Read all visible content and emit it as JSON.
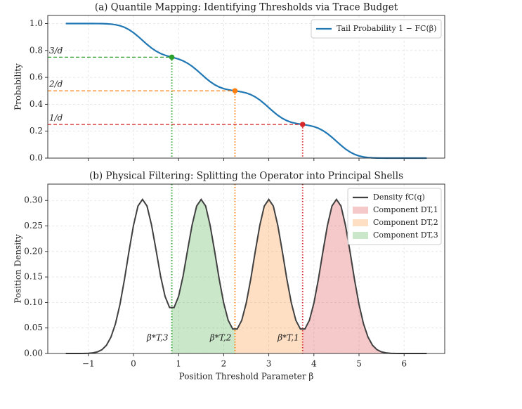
{
  "chart_data": [
    {
      "type": "line",
      "title": "(a) Quantile Mapping: Identifying Thresholds via Trace Budget",
      "ylabel": "Probability",
      "xlim": [
        -1.9,
        6.9
      ],
      "ylim": [
        0,
        1.06
      ],
      "yticks": [
        {
          "value": 0,
          "label": "0.0"
        },
        0.2,
        0.4,
        0.6,
        0.8,
        {
          "value": 1,
          "label": "1.0"
        }
      ],
      "grid": true,
      "legend": "upper right",
      "x": [
        -1.5,
        -1.4,
        -1.3,
        -1.2,
        -1.1,
        -1.0,
        -0.9,
        -0.8,
        -0.7,
        -0.6,
        -0.5,
        -0.4,
        -0.3,
        -0.2,
        -0.1,
        0,
        0.1,
        0.2,
        0.3,
        0.4,
        0.5,
        0.6,
        0.7,
        0.8,
        0.9,
        1.0,
        1.1,
        1.2,
        1.3,
        1.4,
        1.5,
        1.6,
        1.7,
        1.8,
        1.9,
        2.0,
        2.1,
        2.2,
        2.3,
        2.4,
        2.5,
        2.6,
        2.7,
        2.8,
        2.9,
        3.0,
        3.1,
        3.2,
        3.3,
        3.4,
        3.5,
        3.6,
        3.7,
        3.8,
        3.9,
        4.0,
        4.1,
        4.2,
        4.3,
        4.4,
        4.5,
        4.6,
        4.7,
        4.8,
        4.9,
        5.0,
        5.1,
        5.2,
        5.3,
        5.4,
        5.5,
        5.6,
        5.7,
        5.8,
        5.9,
        6.0,
        6.1,
        6.2,
        6.3,
        6.4,
        6.5
      ],
      "series": [
        {
          "name": "Tail Probability 1 − FC(β)",
          "color": "#1f77b4",
          "values": [
            1,
            1,
            1,
            1,
            1,
            1,
            0.9999,
            0.9997,
            0.9992,
            0.998,
            0.9958,
            0.9913,
            0.9838,
            0.9718,
            0.9545,
            0.932,
            0.9048,
            0.875,
            0.8452,
            0.8179,
            0.7952,
            0.7775,
            0.7643,
            0.7545,
            0.7455,
            0.7358,
            0.7226,
            0.7048,
            0.6821,
            0.6548,
            0.625,
            0.5953,
            0.568,
            0.5455,
            0.5282,
            0.516,
            0.508,
            0.5023,
            0.4978,
            0.492,
            0.484,
            0.4719,
            0.4545,
            0.432,
            0.4048,
            0.375,
            0.3453,
            0.318,
            0.2955,
            0.2782,
            0.266,
            0.258,
            0.2523,
            0.2478,
            0.242,
            0.234,
            0.2219,
            0.2045,
            0.182,
            0.1548,
            0.125,
            0.0953,
            0.068,
            0.0455,
            0.0283,
            0.0163,
            0.0088,
            0.0043,
            0.002,
            0.0008,
            0.0003,
            0.0001,
            0,
            0,
            0,
            0,
            0,
            0,
            0,
            0,
            0
          ]
        }
      ],
      "thresholds": [
        {
          "x": 0.85,
          "y": 0.75,
          "label": "3/d",
          "color": "#2ca02c"
        },
        {
          "x": 2.25,
          "y": 0.5,
          "label": "2/d",
          "color": "#ff7f0e"
        },
        {
          "x": 3.75,
          "y": 0.25,
          "label": "1/d",
          "color": "#d62728"
        }
      ]
    },
    {
      "type": "density",
      "title": "(b) Physical Filtering: Splitting the Operator into Principal Shells",
      "ylabel": "Position Density",
      "xlabel": "Position Threshold Parameter β",
      "xlim": [
        -1.9,
        6.9
      ],
      "ylim": [
        0,
        0.332
      ],
      "xticks": [
        {
          "value": -1,
          "label": "−1"
        },
        0,
        1,
        2,
        3,
        4,
        5,
        6
      ],
      "yticks": [
        {
          "value": 0,
          "label": "0.00"
        },
        0.05,
        {
          "value": 0.1,
          "label": "0.10"
        },
        0.15,
        {
          "value": 0.2,
          "label": "0.20"
        },
        0.25,
        {
          "value": 0.3,
          "label": "0.30"
        }
      ],
      "grid": true,
      "legend": "upper right",
      "x": [
        -1.5,
        -1.4,
        -1.3,
        -1.2,
        -1.1,
        -1.0,
        -0.9,
        -0.8,
        -0.7,
        -0.6,
        -0.5,
        -0.4,
        -0.3,
        -0.2,
        -0.1,
        0,
        0.1,
        0.2,
        0.3,
        0.4,
        0.5,
        0.6,
        0.7,
        0.8,
        0.9,
        1.0,
        1.1,
        1.2,
        1.3,
        1.4,
        1.5,
        1.6,
        1.7,
        1.8,
        1.9,
        2.0,
        2.1,
        2.2,
        2.3,
        2.4,
        2.5,
        2.6,
        2.7,
        2.8,
        2.9,
        3.0,
        3.1,
        3.2,
        3.3,
        3.4,
        3.5,
        3.6,
        3.7,
        3.8,
        3.9,
        4.0,
        4.1,
        4.2,
        4.3,
        4.4,
        4.5,
        4.6,
        4.7,
        4.8,
        4.9,
        5.0,
        5.1,
        5.2,
        5.3,
        5.4,
        5.5,
        5.6,
        5.7,
        5.8,
        5.9,
        6.0,
        6.1,
        6.2,
        6.3,
        6.4,
        6.5
      ],
      "series": [
        {
          "name": "Density fC(q)",
          "color": "#404040",
          "values": [
            0,
            0,
            0,
            0,
            0.0001,
            0.0004,
            0.0012,
            0.0031,
            0.0073,
            0.016,
            0.032,
            0.058,
            0.096,
            0.145,
            0.2,
            0.251,
            0.289,
            0.302,
            0.289,
            0.252,
            0.203,
            0.152,
            0.112,
            0.09,
            0.09,
            0.112,
            0.152,
            0.203,
            0.252,
            0.289,
            0.302,
            0.289,
            0.251,
            0.2,
            0.146,
            0.099,
            0.065,
            0.048,
            0.048,
            0.065,
            0.099,
            0.146,
            0.2,
            0.251,
            0.289,
            0.302,
            0.289,
            0.251,
            0.2,
            0.146,
            0.099,
            0.065,
            0.048,
            0.048,
            0.065,
            0.099,
            0.146,
            0.2,
            0.251,
            0.289,
            0.302,
            0.289,
            0.251,
            0.2,
            0.145,
            0.096,
            0.058,
            0.032,
            0.016,
            0.0073,
            0.0031,
            0.0012,
            0.0004,
            0.0001,
            0,
            0,
            0,
            0,
            0,
            0,
            0
          ]
        }
      ],
      "components": [
        {
          "name": "Component DT,1",
          "color": "#d62728",
          "range": [
            3.75,
            6.5
          ]
        },
        {
          "name": "Component DT,2",
          "color": "#ff7f0e",
          "range": [
            2.25,
            3.75
          ]
        },
        {
          "name": "Component DT,3",
          "color": "#2ca02c",
          "range": [
            0.85,
            2.25
          ]
        }
      ],
      "thresholds": [
        {
          "x": 0.85,
          "label": "β*T,3",
          "color": "#2ca02c"
        },
        {
          "x": 2.25,
          "label": "β*T,2",
          "color": "#ff7f0e"
        },
        {
          "x": 3.75,
          "label": "β*T,1",
          "color": "#d62728"
        }
      ]
    }
  ]
}
